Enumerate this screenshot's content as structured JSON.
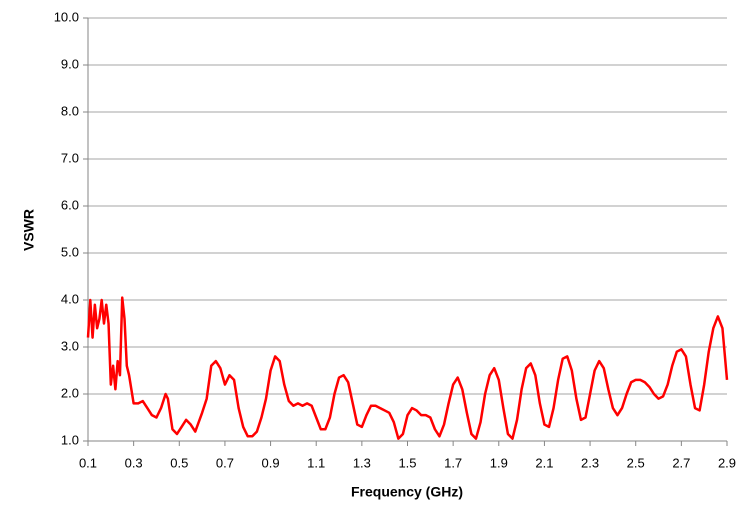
{
  "chart_data": {
    "type": "line",
    "xlabel": "Frequency (GHz)",
    "ylabel": "VSWR",
    "color": "#ff0000",
    "grid": true,
    "xlim": [
      0.1,
      2.9
    ],
    "ylim": [
      1,
      10
    ],
    "xticks": [
      0.1,
      0.3,
      0.5,
      0.7,
      0.9,
      1.1,
      1.3,
      1.5,
      1.7,
      1.9,
      2.1,
      2.3,
      2.5,
      2.7,
      2.9
    ],
    "yticks": [
      {
        "value": 1,
        "label": "1.0"
      },
      {
        "value": 2,
        "label": "2.0"
      },
      {
        "value": 3,
        "label": "3.0"
      },
      {
        "value": 4,
        "label": "4.0"
      },
      {
        "value": 5,
        "label": "5.0"
      },
      {
        "value": 6,
        "label": "6.0"
      },
      {
        "value": 7,
        "label": "7.0"
      },
      {
        "value": 8,
        "label": "8.0"
      },
      {
        "value": 9,
        "label": "9.0"
      },
      {
        "value": 10,
        "label": "10.0"
      }
    ],
    "x": [
      0.1,
      0.11,
      0.12,
      0.13,
      0.14,
      0.15,
      0.16,
      0.17,
      0.18,
      0.19,
      0.2,
      0.21,
      0.22,
      0.23,
      0.24,
      0.25,
      0.26,
      0.27,
      0.28,
      0.3,
      0.32,
      0.34,
      0.36,
      0.38,
      0.4,
      0.42,
      0.44,
      0.45,
      0.47,
      0.49,
      0.51,
      0.53,
      0.55,
      0.57,
      0.6,
      0.62,
      0.64,
      0.66,
      0.68,
      0.7,
      0.72,
      0.74,
      0.76,
      0.78,
      0.8,
      0.82,
      0.84,
      0.86,
      0.88,
      0.9,
      0.92,
      0.94,
      0.96,
      0.98,
      1.0,
      1.02,
      1.04,
      1.06,
      1.08,
      1.1,
      1.12,
      1.14,
      1.16,
      1.18,
      1.2,
      1.22,
      1.24,
      1.26,
      1.28,
      1.3,
      1.32,
      1.34,
      1.36,
      1.38,
      1.4,
      1.42,
      1.44,
      1.46,
      1.48,
      1.5,
      1.52,
      1.54,
      1.56,
      1.58,
      1.6,
      1.62,
      1.64,
      1.66,
      1.68,
      1.7,
      1.72,
      1.74,
      1.76,
      1.78,
      1.8,
      1.82,
      1.84,
      1.86,
      1.88,
      1.9,
      1.92,
      1.94,
      1.96,
      1.98,
      2.0,
      2.02,
      2.04,
      2.06,
      2.08,
      2.1,
      2.12,
      2.14,
      2.16,
      2.18,
      2.2,
      2.22,
      2.24,
      2.26,
      2.28,
      2.3,
      2.32,
      2.34,
      2.36,
      2.38,
      2.4,
      2.42,
      2.44,
      2.46,
      2.48,
      2.5,
      2.52,
      2.54,
      2.56,
      2.58,
      2.6,
      2.62,
      2.64,
      2.66,
      2.68,
      2.7,
      2.72,
      2.74,
      2.76,
      2.78,
      2.8,
      2.82,
      2.84,
      2.86,
      2.88,
      2.9
    ],
    "values": [
      3.2,
      4.0,
      3.2,
      3.9,
      3.4,
      3.6,
      4.0,
      3.5,
      3.9,
      3.5,
      2.2,
      2.6,
      2.1,
      2.7,
      2.4,
      4.05,
      3.6,
      2.6,
      2.4,
      1.8,
      1.8,
      1.85,
      1.7,
      1.55,
      1.5,
      1.7,
      2.0,
      1.9,
      1.25,
      1.15,
      1.3,
      1.45,
      1.35,
      1.2,
      1.6,
      1.9,
      2.6,
      2.7,
      2.55,
      2.2,
      2.4,
      2.3,
      1.7,
      1.3,
      1.1,
      1.1,
      1.2,
      1.5,
      1.9,
      2.5,
      2.8,
      2.7,
      2.2,
      1.85,
      1.75,
      1.8,
      1.75,
      1.8,
      1.75,
      1.5,
      1.25,
      1.25,
      1.5,
      2.0,
      2.35,
      2.4,
      2.25,
      1.8,
      1.35,
      1.3,
      1.55,
      1.75,
      1.75,
      1.7,
      1.65,
      1.6,
      1.4,
      1.05,
      1.15,
      1.55,
      1.7,
      1.65,
      1.55,
      1.55,
      1.5,
      1.25,
      1.1,
      1.35,
      1.8,
      2.2,
      2.35,
      2.1,
      1.6,
      1.15,
      1.05,
      1.4,
      2.0,
      2.4,
      2.55,
      2.3,
      1.7,
      1.15,
      1.05,
      1.45,
      2.1,
      2.55,
      2.65,
      2.4,
      1.8,
      1.35,
      1.3,
      1.7,
      2.3,
      2.75,
      2.8,
      2.5,
      1.9,
      1.45,
      1.5,
      2.0,
      2.5,
      2.7,
      2.55,
      2.1,
      1.7,
      1.55,
      1.7,
      2.0,
      2.25,
      2.3,
      2.3,
      2.25,
      2.15,
      2.0,
      1.9,
      1.95,
      2.2,
      2.6,
      2.9,
      2.95,
      2.8,
      2.2,
      1.7,
      1.65,
      2.2,
      2.9,
      3.4,
      3.65,
      3.4,
      2.3
    ]
  }
}
